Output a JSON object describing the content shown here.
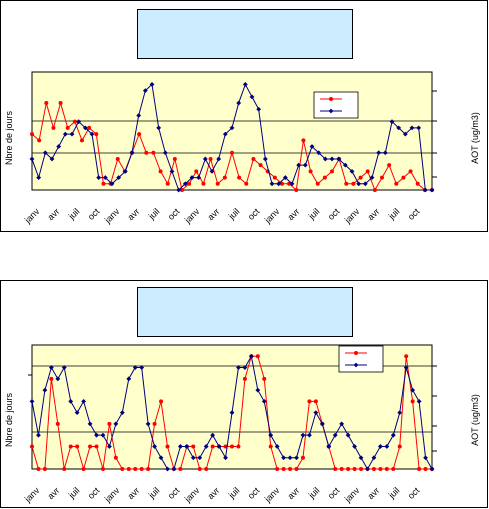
{
  "charts": [
    {
      "chart_data": {
        "type": "line",
        "title": "",
        "xlabel": "",
        "ylabel_left": "Nbre de jours",
        "ylabel_right": "AOT (ug/m3)",
        "x_tick_labels": [
          "janv",
          "avr",
          "juil",
          "oct",
          "janv",
          "avr",
          "juil",
          "oct",
          "janv",
          "avr",
          "juil",
          "oct",
          "janv",
          "avr",
          "juil",
          "oct",
          "janv",
          "avr",
          "juil",
          "oct"
        ],
        "legend_placement": "top-right",
        "grid": "horizontal",
        "series": [
          {
            "color": "#ff0000",
            "marker": "circle",
            "axis": "left",
            "values": [
              9,
              8,
              14,
              10,
              14,
              10,
              11,
              8,
              10,
              9,
              1,
              1,
              5,
              3,
              6,
              9,
              6,
              6,
              3,
              1,
              5,
              0,
              1,
              3,
              1,
              5,
              1,
              2,
              6,
              2,
              1,
              5,
              4,
              3,
              2,
              1,
              1,
              0,
              8,
              3,
              1,
              2,
              3,
              5,
              1,
              1,
              2,
              3,
              0,
              2,
              4,
              1,
              2,
              3,
              1,
              0,
              0
            ]
          },
          {
            "color": "#000080",
            "marker": "diamond",
            "axis": "left",
            "values": [
              5,
              2,
              6,
              5,
              7,
              9,
              9,
              11,
              10,
              9,
              2,
              2,
              1,
              2,
              3,
              6,
              12,
              16,
              17,
              10,
              6,
              3,
              0,
              1,
              2,
              2,
              5,
              3,
              5,
              9,
              10,
              14,
              17,
              15,
              13,
              5,
              1,
              1,
              2,
              1,
              4,
              4,
              7,
              6,
              5,
              5,
              5,
              4,
              3,
              1,
              1,
              2,
              6,
              6,
              11,
              10,
              9,
              10,
              10,
              0,
              0
            ]
          }
        ]
      }
    },
    {
      "chart_data": {
        "type": "line",
        "title": "",
        "xlabel": "",
        "ylabel_left": "Nbre de jours",
        "ylabel_right": "AOT (ug/m3)",
        "x_tick_labels": [
          "janv",
          "avr",
          "juil",
          "oct",
          "janv",
          "avr",
          "juil",
          "oct",
          "janv",
          "avr",
          "juil",
          "oct",
          "janv",
          "avr",
          "juil",
          "oct",
          "janv",
          "avr",
          "juil",
          "oct"
        ],
        "legend_placement": "top-right",
        "grid": "horizontal",
        "series": [
          {
            "color": "#ff0000",
            "marker": "circle",
            "axis": "left",
            "values": [
              2,
              0,
              0,
              8,
              4,
              0,
              2,
              2,
              0,
              2,
              2,
              0,
              4,
              1,
              0,
              0,
              0,
              0,
              0,
              4,
              6,
              2,
              0,
              0,
              2,
              2,
              0,
              0,
              2,
              2,
              2,
              2,
              2,
              8,
              10,
              10,
              8,
              2,
              0,
              0,
              0,
              0,
              1,
              6,
              6,
              4,
              2,
              0,
              0,
              0,
              0,
              0,
              0,
              0,
              0,
              0,
              0,
              2,
              10,
              6,
              0,
              0,
              0
            ]
          },
          {
            "color": "#000080",
            "marker": "diamond",
            "axis": "left",
            "values": [
              6,
              3,
              7,
              9,
              8,
              9,
              6,
              5,
              6,
              4,
              3,
              3,
              2,
              4,
              5,
              8,
              9,
              9,
              4,
              2,
              1,
              0,
              0,
              2,
              2,
              1,
              1,
              2,
              3,
              2,
              1,
              5,
              9,
              9,
              10,
              7,
              6,
              3,
              2,
              1,
              1,
              1,
              3,
              3,
              5,
              4,
              2,
              3,
              4,
              3,
              2,
              1,
              0,
              1,
              2,
              2,
              3,
              5,
              9,
              7,
              6,
              1,
              0
            ]
          }
        ]
      }
    }
  ]
}
